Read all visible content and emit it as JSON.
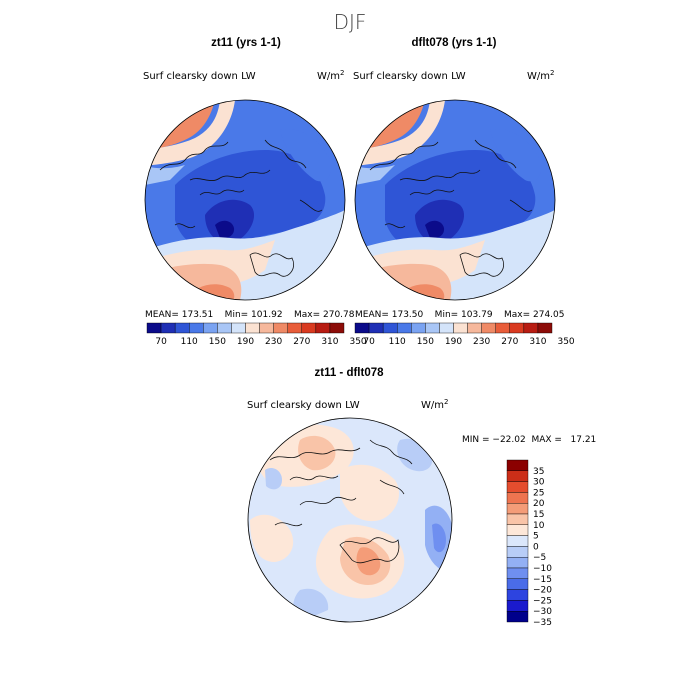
{
  "figure": {
    "suptitle": "DJF"
  },
  "panels": [
    {
      "title": "zt11 (yrs 1-1)",
      "variable": "Surf clearsky down LW",
      "units": "W/m",
      "units_exp": "2",
      "stats": "MEAN= 173.51    Min= 101.92    Max= 270.78",
      "colorbar_labels": [
        "70",
        "110",
        "150",
        "190",
        "230",
        "270",
        "310",
        "350"
      ]
    },
    {
      "title": "dflt078 (yrs 1-1)",
      "variable": "Surf clearsky down LW",
      "units": "W/m",
      "units_exp": "2",
      "stats": "MEAN= 173.50    Min= 103.79    Max= 274.05",
      "colorbar_labels": [
        "70",
        "110",
        "150",
        "190",
        "230",
        "270",
        "310",
        "350"
      ]
    },
    {
      "title": "zt11 - dflt078",
      "variable": "Surf clearsky down LW",
      "units": "W/m",
      "units_exp": "2",
      "stats": "MIN = −22.02  MAX =   17.21",
      "colorbar_labels": [
        "35",
        "30",
        "25",
        "20",
        "15",
        "10",
        "5",
        "0",
        "−5",
        "−10",
        "−15",
        "−20",
        "−25",
        "−30",
        "−35"
      ]
    }
  ],
  "colors": {
    "abs_scale": [
      "#0b0b8a",
      "#1f2fb5",
      "#2f55d6",
      "#4a79e8",
      "#7aa3f2",
      "#a9c6f6",
      "#d4e4fa",
      "#fbe2d2",
      "#f6b89c",
      "#ef8a66",
      "#e85d3a",
      "#d93a20",
      "#b81c12",
      "#8c0c08"
    ],
    "diff_scale": [
      "#00008b",
      "#1a1acd",
      "#2d44e0",
      "#4a6ce8",
      "#6f8ff0",
      "#93b0f4",
      "#b8cdf7",
      "#dbe7fb",
      "#fde7d8",
      "#f9c4a8",
      "#f49c78",
      "#ee7450",
      "#e54d2e",
      "#cc2e18",
      "#8b0000"
    ],
    "coast": "#111111"
  }
}
